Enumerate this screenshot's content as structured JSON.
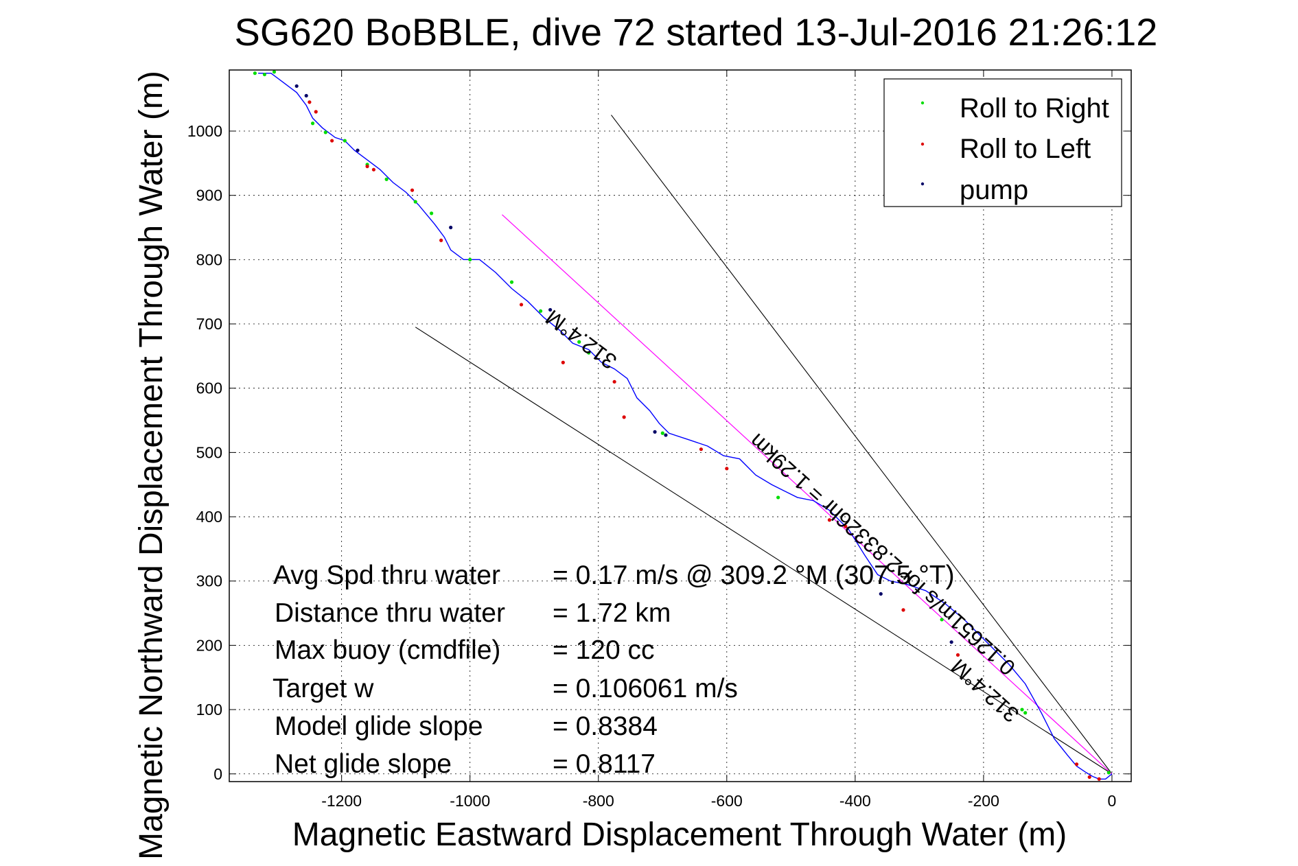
{
  "chart_data": {
    "type": "line",
    "title": "SG620 BoBBLE, dive 72 started 13-Jul-2016 21:26:12",
    "xlabel": "Magnetic Eastward Displacement Through Water (m)",
    "ylabel": "Magnetic Northward Displacement Through Water (m)",
    "xlim": [
      -1375,
      30
    ],
    "ylim": [
      -12,
      1095
    ],
    "xticks": [
      -1200,
      -1000,
      -800,
      -600,
      -400,
      -200,
      0
    ],
    "yticks": [
      0,
      100,
      200,
      300,
      400,
      500,
      600,
      700,
      800,
      900,
      1000
    ],
    "grid": true,
    "legend_position": "top-right",
    "legend": [
      {
        "label": "Roll to Right",
        "color": "#00dd00"
      },
      {
        "label": "Roll to Left",
        "color": "#dd0000"
      },
      {
        "label": "pump",
        "color": "#000066"
      }
    ],
    "track": {
      "name": "",
      "color": "#0000ff",
      "x": [
        0,
        -10,
        -20,
        -30,
        -40,
        -55,
        -70,
        -90,
        -110,
        -135,
        -160,
        -185,
        -205,
        -230,
        -260,
        -290,
        -320,
        -345,
        -365,
        -385,
        -410,
        -440,
        -465,
        -490,
        -510,
        -530,
        -555,
        -580,
        -605,
        -630,
        -660,
        -690,
        -705,
        -720,
        -740,
        -755,
        -775,
        -795,
        -815,
        -840,
        -860,
        -885,
        -910,
        -935,
        -960,
        -985,
        -1010,
        -1030,
        -1040,
        -1055,
        -1080,
        -1100,
        -1120,
        -1140,
        -1160,
        -1180,
        -1195,
        -1210,
        -1230,
        -1245,
        -1255,
        -1270,
        -1290,
        -1310,
        -1330
      ],
      "y": [
        0,
        -8,
        -8,
        -4,
        2,
        12,
        30,
        55,
        95,
        140,
        170,
        195,
        215,
        240,
        265,
        285,
        295,
        300,
        310,
        340,
        380,
        410,
        425,
        430,
        440,
        450,
        465,
        490,
        495,
        510,
        520,
        530,
        545,
        565,
        585,
        615,
        630,
        640,
        660,
        670,
        690,
        710,
        735,
        755,
        780,
        800,
        800,
        815,
        835,
        855,
        885,
        905,
        920,
        940,
        955,
        970,
        985,
        990,
        1005,
        1020,
        1040,
        1060,
        1075,
        1090,
        1090
      ]
    },
    "roll_right_x": [
      -1335,
      -1320,
      -1305,
      -1245,
      -1225,
      -1195,
      -1160,
      -1130,
      -1085,
      -1060,
      -1000,
      -935,
      -890,
      -830,
      -815,
      -700,
      -520,
      -265,
      -140,
      -135,
      -5
    ],
    "roll_right_y": [
      1090,
      1088,
      1092,
      1012,
      998,
      985,
      948,
      925,
      890,
      872,
      800,
      765,
      720,
      672,
      655,
      530,
      430,
      240,
      100,
      95,
      2
    ],
    "roll_left_x": [
      -1250,
      -1240,
      -1215,
      -1160,
      -1150,
      -1090,
      -1045,
      -920,
      -855,
      -775,
      -760,
      -640,
      -600,
      -440,
      -415,
      -325,
      -240,
      -55,
      -35,
      -20
    ],
    "roll_left_y": [
      1045,
      1030,
      985,
      945,
      940,
      908,
      830,
      730,
      640,
      610,
      555,
      505,
      475,
      395,
      385,
      255,
      185,
      15,
      -5,
      -8
    ],
    "pump_x": [
      -1270,
      -1255,
      -1175,
      -1030,
      -875,
      -712,
      -695,
      -360,
      -250
    ],
    "pump_y": [
      1070,
      1055,
      970,
      850,
      722,
      532,
      527,
      280,
      205
    ],
    "heading_line": {
      "color": "#ff00ff",
      "x": [
        0,
        -950
      ],
      "y": [
        0,
        870
      ]
    },
    "envelope_lines": [
      {
        "color": "#000000",
        "x": [
          0,
          -780
        ],
        "y": [
          0,
          1025
        ]
      },
      {
        "color": "#000000",
        "x": [
          0,
          -1085
        ],
        "y": [
          0,
          695
        ]
      }
    ],
    "annotations": [
      "312.4°M",
      "0.12651m/s for 2.83326hr = 1.29km",
      "312.4°M"
    ],
    "stats": [
      {
        "label": "Avg Spd thru water",
        "value": "=  0.17 m/s @ 309.2 °M (307.5 °T)"
      },
      {
        "label": "Distance thru water",
        "value": "=  1.72 km"
      },
      {
        "label": "Max buoy (cmdfile)",
        "value": "= 120 cc"
      },
      {
        "label": "Target w",
        "value": "= 0.106061 m/s"
      },
      {
        "label": "Model glide slope",
        "value": "= 0.8384"
      },
      {
        "label": "Net glide slope",
        "value": "= 0.8117"
      }
    ]
  }
}
